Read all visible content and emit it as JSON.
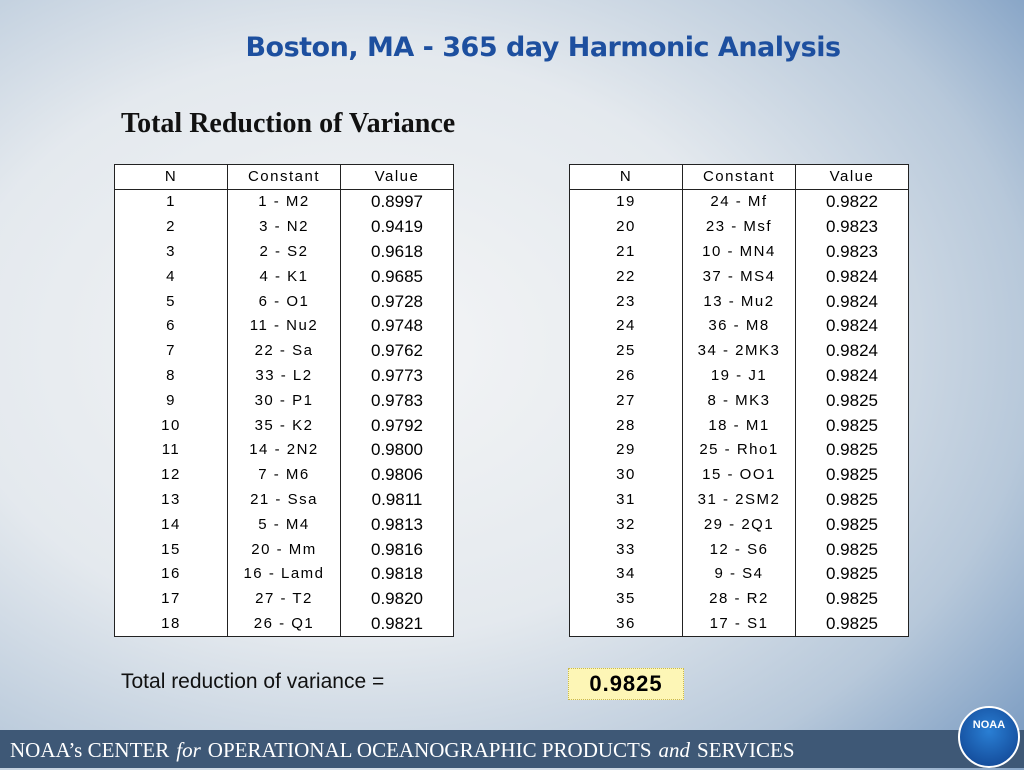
{
  "header": {
    "title": "Boston, MA - 365 day Harmonic Analysis",
    "subtitle": "Total Reduction of Variance"
  },
  "tables": [
    {
      "columns": [
        "N",
        "Constant",
        "Value"
      ],
      "rows": [
        [
          "1",
          "1 - M2",
          "0.8997"
        ],
        [
          "2",
          "3 - N2",
          "0.9419"
        ],
        [
          "3",
          "2 - S2",
          "0.9618"
        ],
        [
          "4",
          "4 - K1",
          "0.9685"
        ],
        [
          "5",
          "6 - O1",
          "0.9728"
        ],
        [
          "6",
          "11 - Nu2",
          "0.9748"
        ],
        [
          "7",
          "22 - Sa",
          "0.9762"
        ],
        [
          "8",
          "33 - L2",
          "0.9773"
        ],
        [
          "9",
          "30 - P1",
          "0.9783"
        ],
        [
          "10",
          "35 - K2",
          "0.9792"
        ],
        [
          "11",
          "14 - 2N2",
          "0.9800"
        ],
        [
          "12",
          "7 - M6",
          "0.9806"
        ],
        [
          "13",
          "21 - Ssa",
          "0.9811"
        ],
        [
          "14",
          "5 - M4",
          "0.9813"
        ],
        [
          "15",
          "20 - Mm",
          "0.9816"
        ],
        [
          "16",
          "16 - Lamd",
          "0.9818"
        ],
        [
          "17",
          "27 - T2",
          "0.9820"
        ],
        [
          "18",
          "26 - Q1",
          "0.9821"
        ]
      ]
    },
    {
      "columns": [
        "N",
        "Constant",
        "Value"
      ],
      "rows": [
        [
          "19",
          "24 - Mf",
          "0.9822"
        ],
        [
          "20",
          "23 - Msf",
          "0.9823"
        ],
        [
          "21",
          "10 - MN4",
          "0.9823"
        ],
        [
          "22",
          "37 - MS4",
          "0.9824"
        ],
        [
          "23",
          "13 - Mu2",
          "0.9824"
        ],
        [
          "24",
          "36 - M8",
          "0.9824"
        ],
        [
          "25",
          "34 - 2MK3",
          "0.9824"
        ],
        [
          "26",
          "19 - J1",
          "0.9824"
        ],
        [
          "27",
          "8 - MK3",
          "0.9825"
        ],
        [
          "28",
          "18 - M1",
          "0.9825"
        ],
        [
          "29",
          "25 - Rho1",
          "0.9825"
        ],
        [
          "30",
          "15 - OO1",
          "0.9825"
        ],
        [
          "31",
          "31 - 2SM2",
          "0.9825"
        ],
        [
          "32",
          "29 - 2Q1",
          "0.9825"
        ],
        [
          "33",
          "12 - S6",
          "0.9825"
        ],
        [
          "34",
          "9 - S4",
          "0.9825"
        ],
        [
          "35",
          "28 - R2",
          "0.9825"
        ],
        [
          "36",
          "17 - S1",
          "0.9825"
        ]
      ]
    }
  ],
  "summary": {
    "label": "Total reduction of variance =",
    "value": "0.9825"
  },
  "footer": {
    "parts": [
      "NOAA’s CENTER",
      "for",
      "OPERATIONAL OCEANOGRAPHIC PRODUCTS",
      "and",
      "SERVICES"
    ],
    "logo": "NOAA"
  }
}
